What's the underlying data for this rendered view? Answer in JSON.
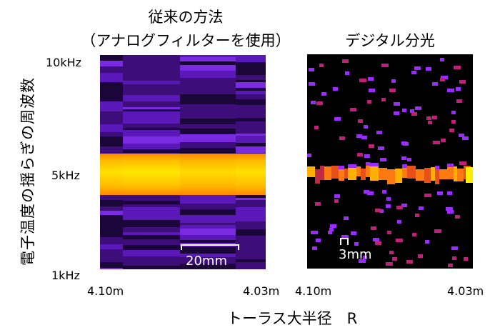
{
  "y_axis_label": "電子温度の揺らぎの周波数",
  "left_title_line1": "従来の方法",
  "left_title_line2": "（アナログフィルターを使用）",
  "right_title": "デジタル分光",
  "y_ticks": [
    "10kHz",
    "5kHz",
    "1kHz"
  ],
  "left_x_ticks": [
    "4.10m",
    "4.03m"
  ],
  "right_x_ticks": [
    "4.10m",
    "4.03m"
  ],
  "left_scale_label": "20mm",
  "right_scale_label": "3mm",
  "x_axis_label": "トーラス大半径　R",
  "colors": {
    "left_background": "#2a0a55",
    "right_background": "#000000",
    "signal_core": "#ffee00",
    "signal_edge": "#ff8a00",
    "noise_purple": "#9b2cff",
    "noise_magenta": "#c0207a"
  }
}
